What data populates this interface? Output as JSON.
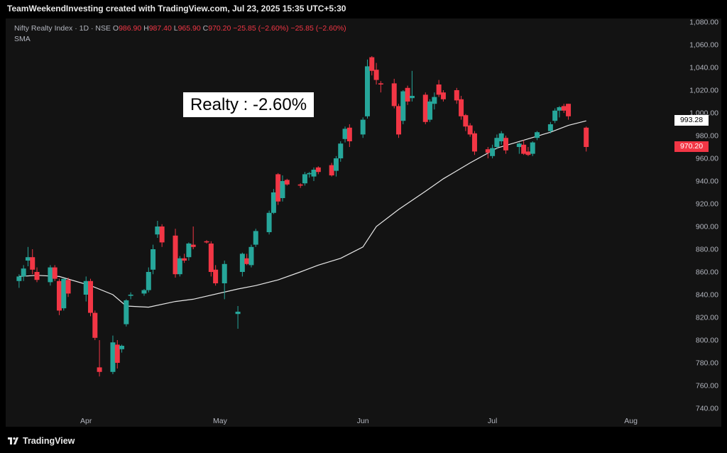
{
  "header": {
    "credit": "TeamWeekendInvesting created with TradingView.com, Jul 23, 2025 15:35 UTC+5:30"
  },
  "legend": {
    "symbol": "Nifty Realty Index · 1D · NSE",
    "open_label": "O",
    "open": "986.90",
    "high_label": "H",
    "high": "987.40",
    "low_label": "L",
    "low": "965.90",
    "close_label": "C",
    "close": "970.20",
    "change": "−25.85 (−2.60%)",
    "change2": "−25.85 (−2.60%)",
    "indicator": "SMA"
  },
  "annotation": "Realty : -2.60%",
  "price_tags": {
    "sma": "993.28",
    "last": "970.20"
  },
  "footer": {
    "brand": "TradingView"
  },
  "colors": {
    "up": "#26a69a",
    "down": "#f23645",
    "sma_line": "#e8e8e8",
    "background": "#131313"
  },
  "chart_data": {
    "type": "candlestick",
    "y_ticks": [
      "1,080.00",
      "1,060.00",
      "1,040.00",
      "1,020.00",
      "1,000.00",
      "980.00",
      "960.00",
      "940.00",
      "920.00",
      "900.00",
      "880.00",
      "860.00",
      "840.00",
      "820.00",
      "800.00",
      "780.00",
      "760.00",
      "740.00"
    ],
    "ylim": [
      740,
      1080
    ],
    "x_ticks": [
      {
        "label": "Apr",
        "date": "2025-04-01"
      },
      {
        "label": "May",
        "date": "2025-05-01"
      },
      {
        "label": "Jun",
        "date": "2025-06-02"
      },
      {
        "label": "Jul",
        "date": "2025-07-01"
      },
      {
        "label": "Aug",
        "date": "2025-08-01"
      }
    ],
    "candles": [
      {
        "date": "2025-03-17",
        "o": 852,
        "h": 858,
        "l": 846,
        "c": 856
      },
      {
        "date": "2025-03-18",
        "o": 856,
        "h": 866,
        "l": 852,
        "c": 863
      },
      {
        "date": "2025-03-19",
        "o": 870,
        "h": 882,
        "l": 865,
        "c": 873
      },
      {
        "date": "2025-03-20",
        "o": 873,
        "h": 880,
        "l": 858,
        "c": 862
      },
      {
        "date": "2025-03-21",
        "o": 860,
        "h": 864,
        "l": 851,
        "c": 853
      },
      {
        "date": "2025-03-24",
        "o": 851,
        "h": 866,
        "l": 848,
        "c": 864
      },
      {
        "date": "2025-03-25",
        "o": 864,
        "h": 866,
        "l": 852,
        "c": 854
      },
      {
        "date": "2025-03-26",
        "o": 852,
        "h": 854,
        "l": 822,
        "c": 826
      },
      {
        "date": "2025-03-27",
        "o": 828,
        "h": 854,
        "l": 826,
        "c": 854
      },
      {
        "date": "2025-03-28",
        "o": 853,
        "h": 855,
        "l": 838,
        "c": 841
      },
      {
        "date": "2025-04-01",
        "o": 840,
        "h": 856,
        "l": 834,
        "c": 852
      },
      {
        "date": "2025-04-02",
        "o": 852,
        "h": 854,
        "l": 821,
        "c": 824
      },
      {
        "date": "2025-04-03",
        "o": 824,
        "h": 826,
        "l": 800,
        "c": 802
      },
      {
        "date": "2025-04-04",
        "o": 776,
        "h": 800,
        "l": 768,
        "c": 772
      },
      {
        "date": "2025-04-07",
        "o": 772,
        "h": 804,
        "l": 770,
        "c": 798
      },
      {
        "date": "2025-04-08",
        "o": 796,
        "h": 800,
        "l": 775,
        "c": 780
      },
      {
        "date": "2025-04-09",
        "o": 792,
        "h": 796,
        "l": 789,
        "c": 795
      },
      {
        "date": "2025-04-10",
        "o": 814,
        "h": 836,
        "l": 812,
        "c": 835
      },
      {
        "date": "2025-04-11",
        "o": 839,
        "h": 842,
        "l": 836,
        "c": 840
      },
      {
        "date": "2025-04-14",
        "o": 841,
        "h": 845,
        "l": 839,
        "c": 844
      },
      {
        "date": "2025-04-15",
        "o": 844,
        "h": 864,
        "l": 842,
        "c": 860
      },
      {
        "date": "2025-04-16",
        "o": 862,
        "h": 884,
        "l": 858,
        "c": 880
      },
      {
        "date": "2025-04-17",
        "o": 893,
        "h": 905,
        "l": 890,
        "c": 900
      },
      {
        "date": "2025-04-18",
        "o": 900,
        "h": 902,
        "l": 882,
        "c": 886
      },
      {
        "date": "2025-04-21",
        "o": 892,
        "h": 898,
        "l": 855,
        "c": 858
      },
      {
        "date": "2025-04-22",
        "o": 858,
        "h": 874,
        "l": 856,
        "c": 872
      },
      {
        "date": "2025-04-23",
        "o": 872,
        "h": 876,
        "l": 868,
        "c": 870
      },
      {
        "date": "2025-04-24",
        "o": 873,
        "h": 886,
        "l": 870,
        "c": 885
      },
      {
        "date": "2025-04-25",
        "o": 884,
        "h": 900,
        "l": 880,
        "c": 882
      },
      {
        "date": "2025-04-28",
        "o": 887,
        "h": 888,
        "l": 885,
        "c": 886
      },
      {
        "date": "2025-04-29",
        "o": 885,
        "h": 887,
        "l": 856,
        "c": 860
      },
      {
        "date": "2025-04-30",
        "o": 862,
        "h": 866,
        "l": 848,
        "c": 850
      },
      {
        "date": "2025-05-02",
        "o": 850,
        "h": 870,
        "l": 836,
        "c": 867
      },
      {
        "date": "2025-05-05",
        "o": 823,
        "h": 830,
        "l": 810,
        "c": 825
      },
      {
        "date": "2025-05-06",
        "o": 860,
        "h": 877,
        "l": 856,
        "c": 876
      },
      {
        "date": "2025-05-07",
        "o": 872,
        "h": 876,
        "l": 866,
        "c": 867
      },
      {
        "date": "2025-05-08",
        "o": 866,
        "h": 884,
        "l": 864,
        "c": 882
      },
      {
        "date": "2025-05-09",
        "o": 884,
        "h": 898,
        "l": 882,
        "c": 896
      },
      {
        "date": "2025-05-12",
        "o": 895,
        "h": 914,
        "l": 893,
        "c": 912
      },
      {
        "date": "2025-05-13",
        "o": 912,
        "h": 933,
        "l": 911,
        "c": 930
      },
      {
        "date": "2025-05-14",
        "o": 946,
        "h": 947,
        "l": 919,
        "c": 922
      },
      {
        "date": "2025-05-15",
        "o": 925,
        "h": 945,
        "l": 922,
        "c": 940
      },
      {
        "date": "2025-05-16",
        "o": 941,
        "h": 942,
        "l": 936,
        "c": 937
      },
      {
        "date": "2025-05-19",
        "o": 937,
        "h": 938,
        "l": 934,
        "c": 936
      },
      {
        "date": "2025-05-20",
        "o": 938,
        "h": 948,
        "l": 936,
        "c": 946
      },
      {
        "date": "2025-05-21",
        "o": 946,
        "h": 948,
        "l": 943,
        "c": 947
      },
      {
        "date": "2025-05-22",
        "o": 944,
        "h": 952,
        "l": 940,
        "c": 950
      },
      {
        "date": "2025-05-23",
        "o": 952,
        "h": 953,
        "l": 946,
        "c": 948
      },
      {
        "date": "2025-05-26",
        "o": 954,
        "h": 956,
        "l": 944,
        "c": 945
      },
      {
        "date": "2025-05-27",
        "o": 949,
        "h": 962,
        "l": 944,
        "c": 960
      },
      {
        "date": "2025-05-28",
        "o": 960,
        "h": 975,
        "l": 957,
        "c": 973
      },
      {
        "date": "2025-05-29",
        "o": 977,
        "h": 988,
        "l": 974,
        "c": 986
      },
      {
        "date": "2025-05-30",
        "o": 987,
        "h": 990,
        "l": 970,
        "c": 975
      },
      {
        "date": "2025-06-02",
        "o": 981,
        "h": 996,
        "l": 978,
        "c": 994
      },
      {
        "date": "2025-06-03",
        "o": 997,
        "h": 1047,
        "l": 995,
        "c": 1041
      },
      {
        "date": "2025-06-04",
        "o": 1049,
        "h": 1050,
        "l": 1033,
        "c": 1037
      },
      {
        "date": "2025-06-05",
        "o": 1038,
        "h": 1044,
        "l": 1025,
        "c": 1029
      },
      {
        "date": "2025-06-06",
        "o": 1026,
        "h": 1028,
        "l": 1018,
        "c": 1025
      },
      {
        "date": "2025-06-09",
        "o": 1026,
        "h": 1030,
        "l": 1004,
        "c": 1006
      },
      {
        "date": "2025-06-10",
        "o": 1006,
        "h": 1008,
        "l": 978,
        "c": 981
      },
      {
        "date": "2025-06-11",
        "o": 993,
        "h": 1020,
        "l": 990,
        "c": 1019
      },
      {
        "date": "2025-06-12",
        "o": 1022,
        "h": 1024,
        "l": 1007,
        "c": 1010
      },
      {
        "date": "2025-06-13",
        "o": 1013,
        "h": 1037,
        "l": 1010,
        "c": 1015
      },
      {
        "date": "2025-06-16",
        "o": 1016,
        "h": 1018,
        "l": 990,
        "c": 992
      },
      {
        "date": "2025-06-17",
        "o": 994,
        "h": 1012,
        "l": 992,
        "c": 1010
      },
      {
        "date": "2025-06-18",
        "o": 1008,
        "h": 1018,
        "l": 1003,
        "c": 1014
      },
      {
        "date": "2025-06-19",
        "o": 1025,
        "h": 1029,
        "l": 1014,
        "c": 1016
      },
      {
        "date": "2025-06-20",
        "o": 1018,
        "h": 1020,
        "l": 1010,
        "c": 1012
      },
      {
        "date": "2025-06-23",
        "o": 1020,
        "h": 1022,
        "l": 1008,
        "c": 1011
      },
      {
        "date": "2025-06-24",
        "o": 1012,
        "h": 1015,
        "l": 994,
        "c": 997
      },
      {
        "date": "2025-06-25",
        "o": 998,
        "h": 999,
        "l": 984,
        "c": 988
      },
      {
        "date": "2025-06-26",
        "o": 989,
        "h": 991,
        "l": 979,
        "c": 981
      },
      {
        "date": "2025-06-27",
        "o": 982,
        "h": 984,
        "l": 963,
        "c": 966
      },
      {
        "date": "2025-06-30",
        "o": 968,
        "h": 970,
        "l": 960,
        "c": 965
      },
      {
        "date": "2025-07-01",
        "o": 962,
        "h": 972,
        "l": 960,
        "c": 969
      },
      {
        "date": "2025-07-02",
        "o": 970,
        "h": 981,
        "l": 968,
        "c": 978
      },
      {
        "date": "2025-07-03",
        "o": 975,
        "h": 984,
        "l": 972,
        "c": 982
      },
      {
        "date": "2025-07-04",
        "o": 978,
        "h": 980,
        "l": 964,
        "c": 967
      },
      {
        "date": "2025-07-07",
        "o": 970,
        "h": 974,
        "l": 964,
        "c": 973
      },
      {
        "date": "2025-07-08",
        "o": 972,
        "h": 976,
        "l": 963,
        "c": 964
      },
      {
        "date": "2025-07-09",
        "o": 966,
        "h": 970,
        "l": 962,
        "c": 963
      },
      {
        "date": "2025-07-10",
        "o": 964,
        "h": 975,
        "l": 962,
        "c": 974
      },
      {
        "date": "2025-07-11",
        "o": 978,
        "h": 984,
        "l": 976,
        "c": 983
      },
      {
        "date": "2025-07-14",
        "o": 984,
        "h": 992,
        "l": 982,
        "c": 990
      },
      {
        "date": "2025-07-15",
        "o": 993,
        "h": 1004,
        "l": 991,
        "c": 1002
      },
      {
        "date": "2025-07-16",
        "o": 1002,
        "h": 1006,
        "l": 996,
        "c": 1005
      },
      {
        "date": "2025-07-17",
        "o": 1006,
        "h": 1008,
        "l": 1000,
        "c": 1002
      },
      {
        "date": "2025-07-18",
        "o": 1008,
        "h": 1008,
        "l": 994,
        "c": 997
      },
      {
        "date": "2025-07-22",
        "o": 987,
        "h": 988,
        "l": 966,
        "c": 970
      }
    ],
    "sma": [
      {
        "date": "2025-03-17",
        "v": 856
      },
      {
        "date": "2025-03-21",
        "v": 857
      },
      {
        "date": "2025-03-26",
        "v": 856
      },
      {
        "date": "2025-04-02",
        "v": 848
      },
      {
        "date": "2025-04-07",
        "v": 840
      },
      {
        "date": "2025-04-10",
        "v": 830
      },
      {
        "date": "2025-04-15",
        "v": 829
      },
      {
        "date": "2025-04-21",
        "v": 834
      },
      {
        "date": "2025-04-25",
        "v": 836
      },
      {
        "date": "2025-05-05",
        "v": 845
      },
      {
        "date": "2025-05-09",
        "v": 848
      },
      {
        "date": "2025-05-14",
        "v": 853
      },
      {
        "date": "2025-05-19",
        "v": 860
      },
      {
        "date": "2025-05-23",
        "v": 866
      },
      {
        "date": "2025-05-28",
        "v": 872
      },
      {
        "date": "2025-06-02",
        "v": 882
      },
      {
        "date": "2025-06-05",
        "v": 900
      },
      {
        "date": "2025-06-10",
        "v": 915
      },
      {
        "date": "2025-06-16",
        "v": 931
      },
      {
        "date": "2025-06-20",
        "v": 942
      },
      {
        "date": "2025-06-26",
        "v": 956
      },
      {
        "date": "2025-07-02",
        "v": 969
      },
      {
        "date": "2025-07-08",
        "v": 976
      },
      {
        "date": "2025-07-14",
        "v": 983
      },
      {
        "date": "2025-07-18",
        "v": 989
      },
      {
        "date": "2025-07-22",
        "v": 993
      }
    ],
    "last_price": 970.2,
    "sma_value": 993.28
  }
}
